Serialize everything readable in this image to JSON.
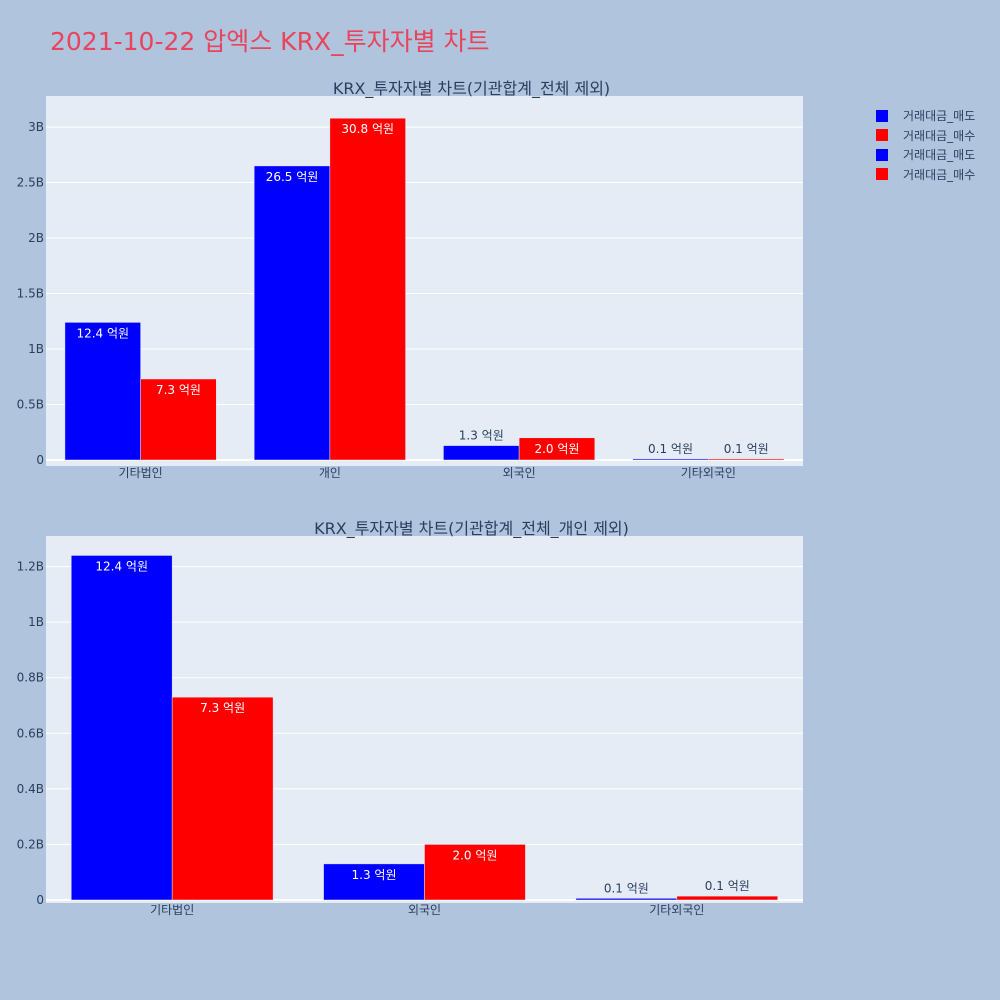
{
  "page": {
    "title": "2021-10-22 압엑스 KRX_투자자별 차트"
  },
  "legend": [
    {
      "label": "거래대금_매도",
      "color": "#0000ff"
    },
    {
      "label": "거래대금_매수",
      "color": "#ff0000"
    },
    {
      "label": "거래대금_매도",
      "color": "#0000ff"
    },
    {
      "label": "거래대금_매수",
      "color": "#ff0000"
    }
  ],
  "chart_data": [
    {
      "type": "bar",
      "title": "KRX_투자자별 차트(기관합계_전체 제외)",
      "categories": [
        "기타법인",
        "개인",
        "외국인",
        "기타외국인"
      ],
      "ylim": [
        0,
        3280000000
      ],
      "yticks": [
        0,
        500000000,
        1000000000,
        1500000000,
        2000000000,
        2500000000,
        3000000000
      ],
      "ytick_labels": [
        "0",
        "0.5B",
        "1B",
        "1.5B",
        "2B",
        "2.5B",
        "3B"
      ],
      "grid": true,
      "series": [
        {
          "name": "거래대금_매도",
          "color": "#0000ff",
          "values": [
            1240000000,
            2650000000,
            130000000,
            10000000
          ],
          "labels": [
            "12.4 억원",
            "26.5 억원",
            "1.3 억원",
            "0.1 억원"
          ]
        },
        {
          "name": "거래대금_매수",
          "color": "#ff0000",
          "values": [
            730000000,
            3080000000,
            200000000,
            10000000
          ],
          "labels": [
            "7.3 억원",
            "30.8 억원",
            "2.0 억원",
            "0.1 억원"
          ]
        }
      ]
    },
    {
      "type": "bar",
      "title": "KRX_투자자별 차트(기관합계_전체_개인 제외)",
      "categories": [
        "기타법인",
        "외국인",
        "기타외국인"
      ],
      "ylim": [
        0,
        1310000000
      ],
      "yticks": [
        0,
        200000000,
        400000000,
        600000000,
        800000000,
        1000000000,
        1200000000
      ],
      "ytick_labels": [
        "0",
        "0.2B",
        "0.4B",
        "0.6B",
        "0.8B",
        "1B",
        "1.2B"
      ],
      "grid": true,
      "series": [
        {
          "name": "거래대금_매도",
          "color": "#0000ff",
          "values": [
            1240000000,
            130000000,
            6000000
          ],
          "labels": [
            "12.4 억원",
            "1.3 억원",
            "0.1 억원"
          ]
        },
        {
          "name": "거래대금_매수",
          "color": "#ff0000",
          "values": [
            730000000,
            200000000,
            14000000
          ],
          "labels": [
            "7.3 억원",
            "2.0 억원",
            "0.1 억원"
          ]
        }
      ]
    }
  ]
}
